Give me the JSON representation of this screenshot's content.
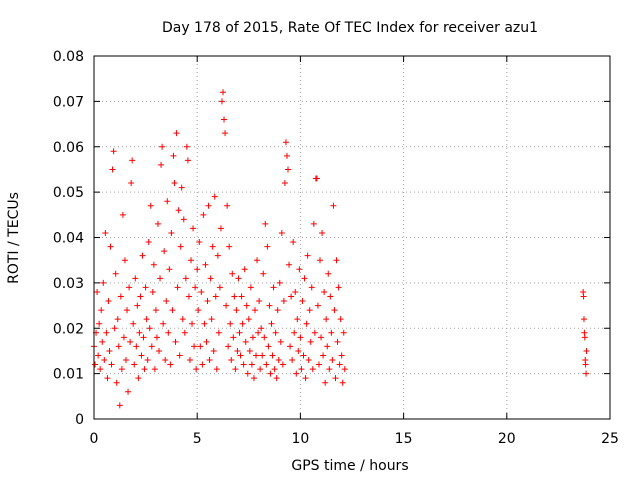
{
  "chart_data": {
    "type": "scatter",
    "title": "Day 178 of 2015, Rate Of TEC Index for receiver azu1",
    "xlabel": "GPS time / hours",
    "ylabel": "ROTI / TECUs",
    "xlim": [
      0,
      25
    ],
    "ylim": [
      0,
      0.08
    ],
    "xticks": [
      "0",
      "5",
      "10",
      "15",
      "20",
      "25"
    ],
    "yticks": [
      "0",
      "0.01",
      "0.02",
      "0.03",
      "0.04",
      "0.05",
      "0.06",
      "0.07",
      "0.08"
    ],
    "grid": true,
    "marker": "plus",
    "color": "#ff0000",
    "series": [
      {
        "points": [
          [
            0.0,
            0.016
          ],
          [
            0.05,
            0.012
          ],
          [
            0.1,
            0.019
          ],
          [
            0.15,
            0.028
          ],
          [
            0.2,
            0.014
          ],
          [
            0.25,
            0.021
          ],
          [
            0.3,
            0.011
          ],
          [
            0.35,
            0.024
          ],
          [
            0.4,
            0.017
          ],
          [
            0.45,
            0.03
          ],
          [
            0.5,
            0.013
          ],
          [
            0.55,
            0.041
          ],
          [
            0.6,
            0.019
          ],
          [
            0.65,
            0.009
          ],
          [
            0.7,
            0.026
          ],
          [
            0.75,
            0.015
          ],
          [
            0.8,
            0.038
          ],
          [
            0.85,
            0.012
          ],
          [
            0.9,
            0.055
          ],
          [
            0.95,
            0.059
          ],
          [
            1.0,
            0.02
          ],
          [
            1.05,
            0.032
          ],
          [
            1.1,
            0.008
          ],
          [
            1.15,
            0.022
          ],
          [
            1.2,
            0.016
          ],
          [
            1.25,
            0.003
          ],
          [
            1.3,
            0.027
          ],
          [
            1.35,
            0.011
          ],
          [
            1.4,
            0.045
          ],
          [
            1.45,
            0.018
          ],
          [
            1.5,
            0.035
          ],
          [
            1.55,
            0.013
          ],
          [
            1.6,
            0.024
          ],
          [
            1.65,
            0.006
          ],
          [
            1.7,
            0.029
          ],
          [
            1.75,
            0.017
          ],
          [
            1.8,
            0.052
          ],
          [
            1.85,
            0.057
          ],
          [
            1.9,
            0.021
          ],
          [
            1.95,
            0.012
          ],
          [
            2.0,
            0.031
          ],
          [
            2.05,
            0.016
          ],
          [
            2.1,
            0.025
          ],
          [
            2.15,
            0.009
          ],
          [
            2.2,
            0.019
          ],
          [
            2.25,
            0.027
          ],
          [
            2.3,
            0.014
          ],
          [
            2.35,
            0.036
          ],
          [
            2.4,
            0.018
          ],
          [
            2.45,
            0.011
          ],
          [
            2.5,
            0.029
          ],
          [
            2.55,
            0.022
          ],
          [
            2.6,
            0.013
          ],
          [
            2.65,
            0.039
          ],
          [
            2.7,
            0.02
          ],
          [
            2.75,
            0.047
          ],
          [
            2.8,
            0.016
          ],
          [
            2.85,
            0.028
          ],
          [
            2.9,
            0.034
          ],
          [
            2.95,
            0.011
          ],
          [
            3.0,
            0.024
          ],
          [
            3.05,
            0.018
          ],
          [
            3.1,
            0.043
          ],
          [
            3.15,
            0.015
          ],
          [
            3.2,
            0.031
          ],
          [
            3.25,
            0.056
          ],
          [
            3.3,
            0.06
          ],
          [
            3.35,
            0.021
          ],
          [
            3.4,
            0.037
          ],
          [
            3.45,
            0.013
          ],
          [
            3.5,
            0.026
          ],
          [
            3.55,
            0.048
          ],
          [
            3.6,
            0.019
          ],
          [
            3.65,
            0.033
          ],
          [
            3.7,
            0.012
          ],
          [
            3.75,
            0.041
          ],
          [
            3.8,
            0.024
          ],
          [
            3.85,
            0.058
          ],
          [
            3.9,
            0.052
          ],
          [
            3.95,
            0.017
          ],
          [
            4.0,
            0.063
          ],
          [
            4.05,
            0.029
          ],
          [
            4.1,
            0.046
          ],
          [
            4.15,
            0.014
          ],
          [
            4.2,
            0.038
          ],
          [
            4.25,
            0.051
          ],
          [
            4.3,
            0.022
          ],
          [
            4.35,
            0.044
          ],
          [
            4.4,
            0.019
          ],
          [
            4.45,
            0.031
          ],
          [
            4.5,
            0.06
          ],
          [
            4.55,
            0.057
          ],
          [
            4.6,
            0.027
          ],
          [
            4.65,
            0.013
          ],
          [
            4.7,
            0.035
          ],
          [
            4.75,
            0.021
          ],
          [
            4.8,
            0.042
          ],
          [
            4.85,
            0.016
          ],
          [
            4.9,
            0.029
          ],
          [
            4.95,
            0.011
          ],
          [
            5.0,
            0.033
          ],
          [
            5.05,
            0.024
          ],
          [
            5.1,
            0.039
          ],
          [
            5.15,
            0.016
          ],
          [
            5.2,
            0.028
          ],
          [
            5.25,
            0.012
          ],
          [
            5.3,
            0.045
          ],
          [
            5.35,
            0.021
          ],
          [
            5.4,
            0.034
          ],
          [
            5.45,
            0.017
          ],
          [
            5.5,
            0.026
          ],
          [
            5.55,
            0.047
          ],
          [
            5.6,
            0.013
          ],
          [
            5.65,
            0.031
          ],
          [
            5.7,
            0.022
          ],
          [
            5.75,
            0.038
          ],
          [
            5.8,
            0.015
          ],
          [
            5.85,
            0.049
          ],
          [
            5.9,
            0.027
          ],
          [
            5.95,
            0.011
          ],
          [
            6.0,
            0.036
          ],
          [
            6.05,
            0.019
          ],
          [
            6.1,
            0.029
          ],
          [
            6.15,
            0.042
          ],
          [
            6.2,
            0.07
          ],
          [
            6.25,
            0.072
          ],
          [
            6.3,
            0.066
          ],
          [
            6.35,
            0.063
          ],
          [
            6.4,
            0.025
          ],
          [
            6.45,
            0.047
          ],
          [
            6.5,
            0.016
          ],
          [
            6.55,
            0.038
          ],
          [
            6.6,
            0.021
          ],
          [
            6.65,
            0.013
          ],
          [
            6.7,
            0.032
          ],
          [
            6.75,
            0.018
          ],
          [
            6.8,
            0.027
          ],
          [
            6.85,
            0.011
          ],
          [
            6.9,
            0.024
          ],
          [
            6.95,
            0.015
          ],
          [
            7.0,
            0.031
          ],
          [
            7.05,
            0.019
          ],
          [
            7.1,
            0.014
          ],
          [
            7.15,
            0.027
          ],
          [
            7.2,
            0.021
          ],
          [
            7.25,
            0.012
          ],
          [
            7.3,
            0.033
          ],
          [
            7.35,
            0.017
          ],
          [
            7.4,
            0.025
          ],
          [
            7.45,
            0.01
          ],
          [
            7.5,
            0.022
          ],
          [
            7.55,
            0.015
          ],
          [
            7.6,
            0.029
          ],
          [
            7.65,
            0.012
          ],
          [
            7.7,
            0.018
          ],
          [
            7.75,
            0.009
          ],
          [
            7.8,
            0.024
          ],
          [
            7.85,
            0.014
          ],
          [
            7.9,
            0.035
          ],
          [
            7.95,
            0.019
          ],
          [
            8.0,
            0.026
          ],
          [
            8.05,
            0.011
          ],
          [
            8.1,
            0.02
          ],
          [
            8.15,
            0.014
          ],
          [
            8.2,
            0.032
          ],
          [
            8.25,
            0.018
          ],
          [
            8.3,
            0.043
          ],
          [
            8.35,
            0.012
          ],
          [
            8.4,
            0.038
          ],
          [
            8.45,
            0.016
          ],
          [
            8.5,
            0.025
          ],
          [
            8.55,
            0.01
          ],
          [
            8.6,
            0.021
          ],
          [
            8.65,
            0.014
          ],
          [
            8.7,
            0.029
          ],
          [
            8.75,
            0.011
          ],
          [
            8.8,
            0.019
          ],
          [
            8.85,
            0.009
          ],
          [
            8.9,
            0.024
          ],
          [
            8.95,
            0.013
          ],
          [
            9.0,
            0.03
          ],
          [
            9.05,
            0.017
          ],
          [
            9.1,
            0.041
          ],
          [
            9.15,
            0.012
          ],
          [
            9.2,
            0.026
          ],
          [
            9.25,
            0.052
          ],
          [
            9.3,
            0.061
          ],
          [
            9.35,
            0.058
          ],
          [
            9.4,
            0.055
          ],
          [
            9.45,
            0.034
          ],
          [
            9.5,
            0.016
          ],
          [
            9.55,
            0.027
          ],
          [
            9.6,
            0.013
          ],
          [
            9.65,
            0.039
          ],
          [
            9.7,
            0.019
          ],
          [
            9.75,
            0.028
          ],
          [
            9.8,
            0.01
          ],
          [
            9.85,
            0.022
          ],
          [
            9.9,
            0.015
          ],
          [
            9.95,
            0.033
          ],
          [
            10.0,
            0.018
          ],
          [
            10.05,
            0.011
          ],
          [
            10.1,
            0.026
          ],
          [
            10.15,
            0.014
          ],
          [
            10.2,
            0.031
          ],
          [
            10.25,
            0.009
          ],
          [
            10.3,
            0.021
          ],
          [
            10.35,
            0.036
          ],
          [
            10.4,
            0.013
          ],
          [
            10.45,
            0.024
          ],
          [
            10.5,
            0.017
          ],
          [
            10.55,
            0.029
          ],
          [
            10.6,
            0.011
          ],
          [
            10.65,
            0.043
          ],
          [
            10.7,
            0.019
          ],
          [
            10.75,
            0.053
          ],
          [
            10.8,
            0.053
          ],
          [
            10.85,
            0.025
          ],
          [
            10.9,
            0.012
          ],
          [
            10.95,
            0.035
          ],
          [
            11.0,
            0.018
          ],
          [
            11.05,
            0.041
          ],
          [
            11.1,
            0.014
          ],
          [
            11.15,
            0.028
          ],
          [
            11.2,
            0.008
          ],
          [
            11.25,
            0.022
          ],
          [
            11.3,
            0.016
          ],
          [
            11.35,
            0.032
          ],
          [
            11.4,
            0.011
          ],
          [
            11.45,
            0.027
          ],
          [
            11.5,
            0.019
          ],
          [
            11.55,
            0.013
          ],
          [
            11.6,
            0.047
          ],
          [
            11.65,
            0.024
          ],
          [
            11.7,
            0.009
          ],
          [
            11.75,
            0.035
          ],
          [
            11.8,
            0.017
          ],
          [
            11.85,
            0.029
          ],
          [
            11.9,
            0.012
          ],
          [
            11.95,
            0.022
          ],
          [
            12.0,
            0.014
          ],
          [
            12.05,
            0.008
          ],
          [
            12.1,
            0.019
          ],
          [
            12.15,
            0.011
          ],
          [
            23.7,
            0.028
          ],
          [
            23.72,
            0.027
          ],
          [
            23.74,
            0.022
          ],
          [
            23.76,
            0.019
          ],
          [
            23.78,
            0.018
          ],
          [
            23.8,
            0.013
          ],
          [
            23.82,
            0.012
          ],
          [
            23.84,
            0.01
          ],
          [
            23.86,
            0.015
          ]
        ]
      }
    ]
  }
}
